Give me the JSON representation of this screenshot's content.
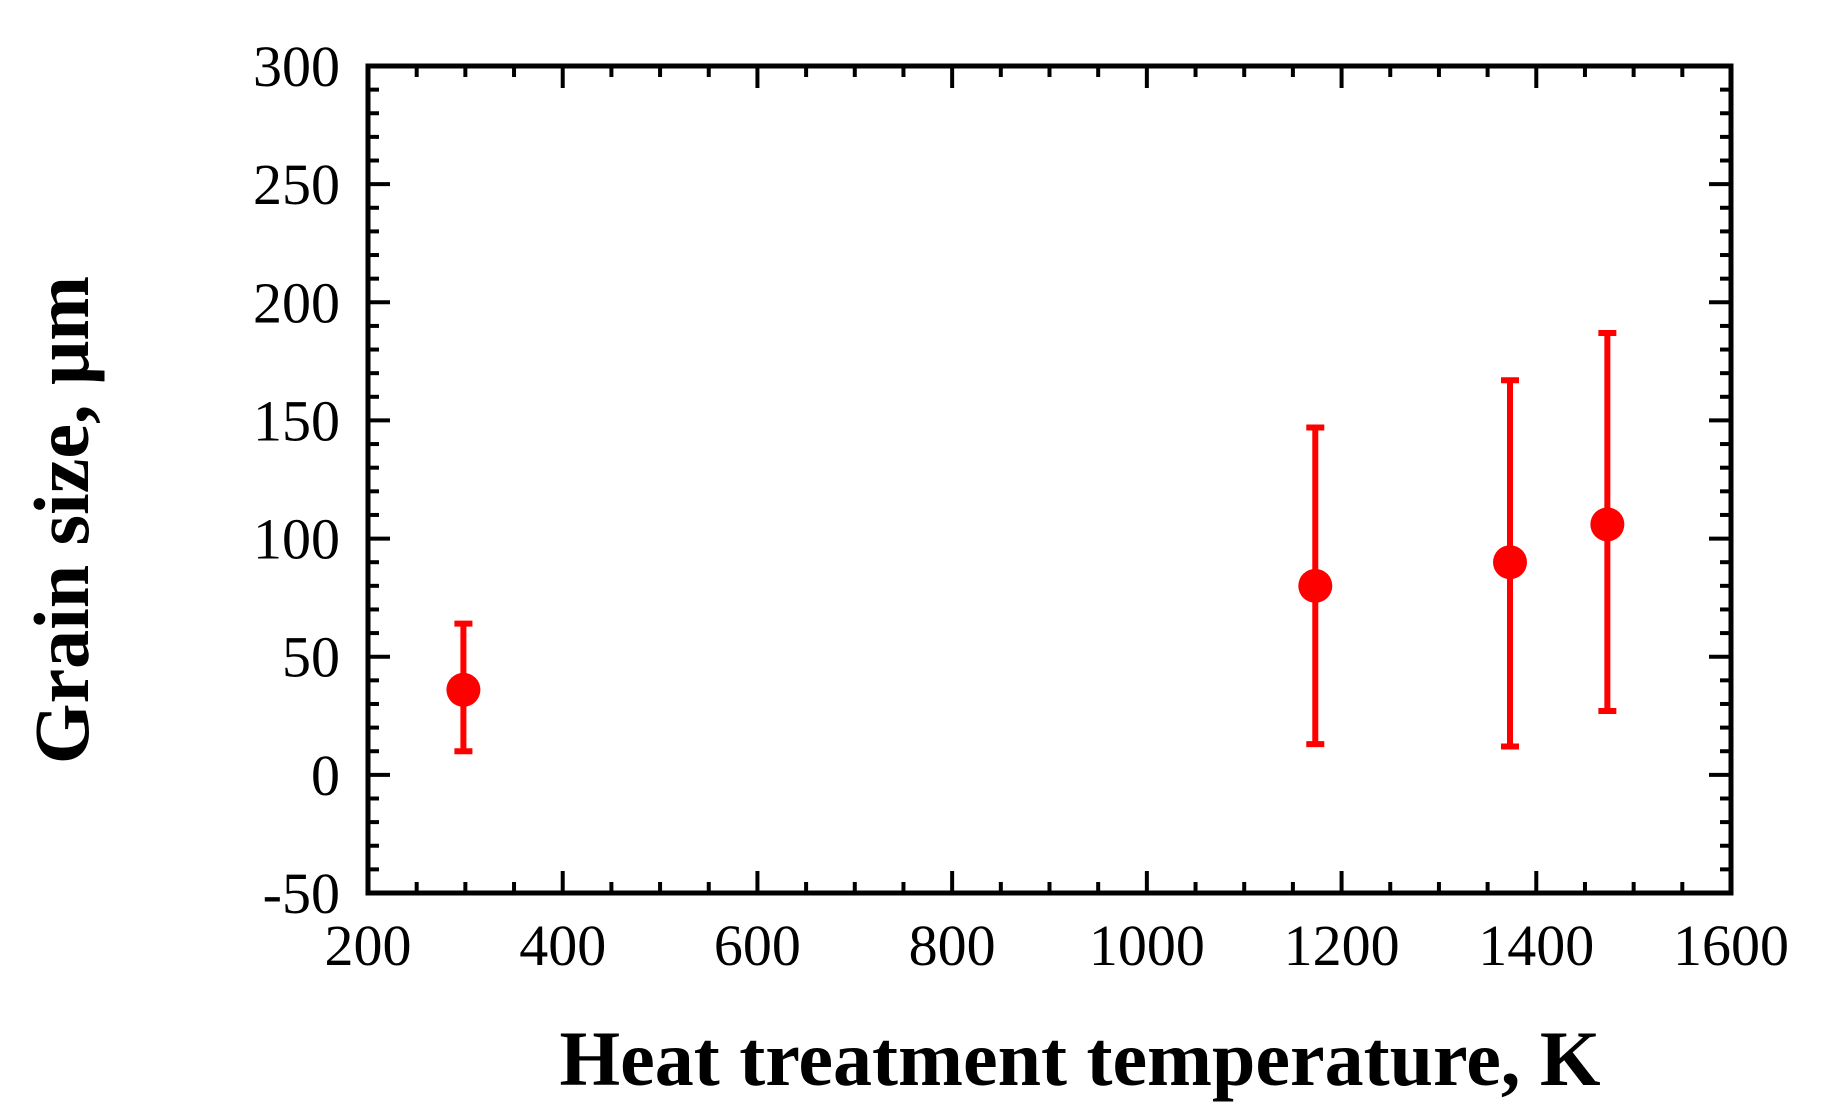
{
  "chart_data": {
    "type": "scatter",
    "xlabel": "Heat treatment temperature, K",
    "ylabel": "Grain size, μm",
    "xlim": [
      200,
      1600
    ],
    "ylim": [
      -50,
      300
    ],
    "x_ticks": [
      200,
      400,
      600,
      800,
      1000,
      1200,
      1400,
      1600
    ],
    "y_ticks": [
      -50,
      0,
      50,
      100,
      150,
      200,
      250,
      300
    ],
    "x_tick_labels": [
      "200",
      "400",
      "600",
      "800",
      "1000",
      "1200",
      "1400",
      "1600"
    ],
    "y_tick_labels": [
      "-50",
      "0",
      "50",
      "100",
      "150",
      "200",
      "250",
      "300"
    ],
    "grid": false,
    "legend": "none",
    "colors": {
      "marker": "#ff0000",
      "axis": "#000000"
    },
    "series": [
      {
        "points": [
          {
            "x": 298,
            "y": 36,
            "y_low": 10,
            "y_high": 64
          },
          {
            "x": 1173,
            "y": 80,
            "y_low": 13,
            "y_high": 147
          },
          {
            "x": 1373,
            "y": 90,
            "y_low": 12,
            "y_high": 167
          },
          {
            "x": 1473,
            "y": 106,
            "y_low": 27,
            "y_high": 187
          }
        ]
      }
    ]
  }
}
